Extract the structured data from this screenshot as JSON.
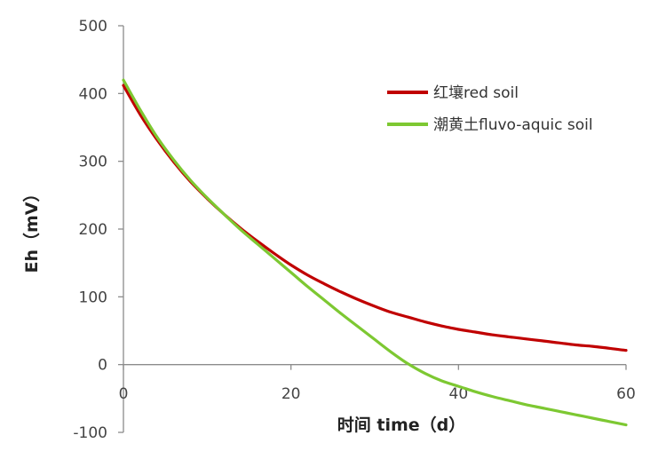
{
  "chart_data": {
    "type": "line",
    "xlabel": "时间 time（d）",
    "ylabel": "Eh（mV）",
    "xlim": [
      0,
      60
    ],
    "ylim": [
      -100,
      500
    ],
    "x_ticks": [
      "0",
      "20",
      "40",
      "60"
    ],
    "y_ticks": [
      "500",
      "400",
      "300",
      "200",
      "100",
      "0",
      "-100"
    ],
    "legend_position": "top-right",
    "grid": false,
    "series": [
      {
        "name": "红壤red soil",
        "color": "#c00000",
        "x": [
          0,
          2,
          4,
          6,
          8,
          10,
          12,
          14,
          16,
          18,
          20,
          22,
          24,
          26,
          28,
          30,
          32,
          34,
          36,
          38,
          40,
          42,
          44,
          46,
          48,
          50,
          52,
          54,
          56,
          58,
          60
        ],
        "y": [
          412,
          369,
          332,
          299,
          270,
          245,
          222,
          201,
          182,
          164,
          147,
          132,
          119,
          107,
          96,
          86,
          77,
          70,
          63,
          57,
          52,
          48,
          44,
          41,
          38,
          35,
          32,
          29,
          27,
          24,
          21
        ]
      },
      {
        "name": "潮黄土fluvo-aquic soil",
        "color": "#7dc832",
        "x": [
          0,
          2,
          4,
          6,
          8,
          10,
          12,
          14,
          16,
          18,
          20,
          22,
          24,
          26,
          28,
          30,
          32,
          34,
          36,
          38,
          40,
          42,
          44,
          46,
          48,
          50,
          52,
          54,
          56,
          58,
          60
        ],
        "y": [
          420,
          376,
          336,
          302,
          272,
          246,
          222,
          199,
          178,
          157,
          136,
          115,
          95,
          75,
          56,
          37,
          18,
          1,
          -13,
          -24,
          -32,
          -40,
          -47,
          -53,
          -59,
          -64,
          -69,
          -74,
          -79,
          -84,
          -89
        ]
      }
    ]
  }
}
